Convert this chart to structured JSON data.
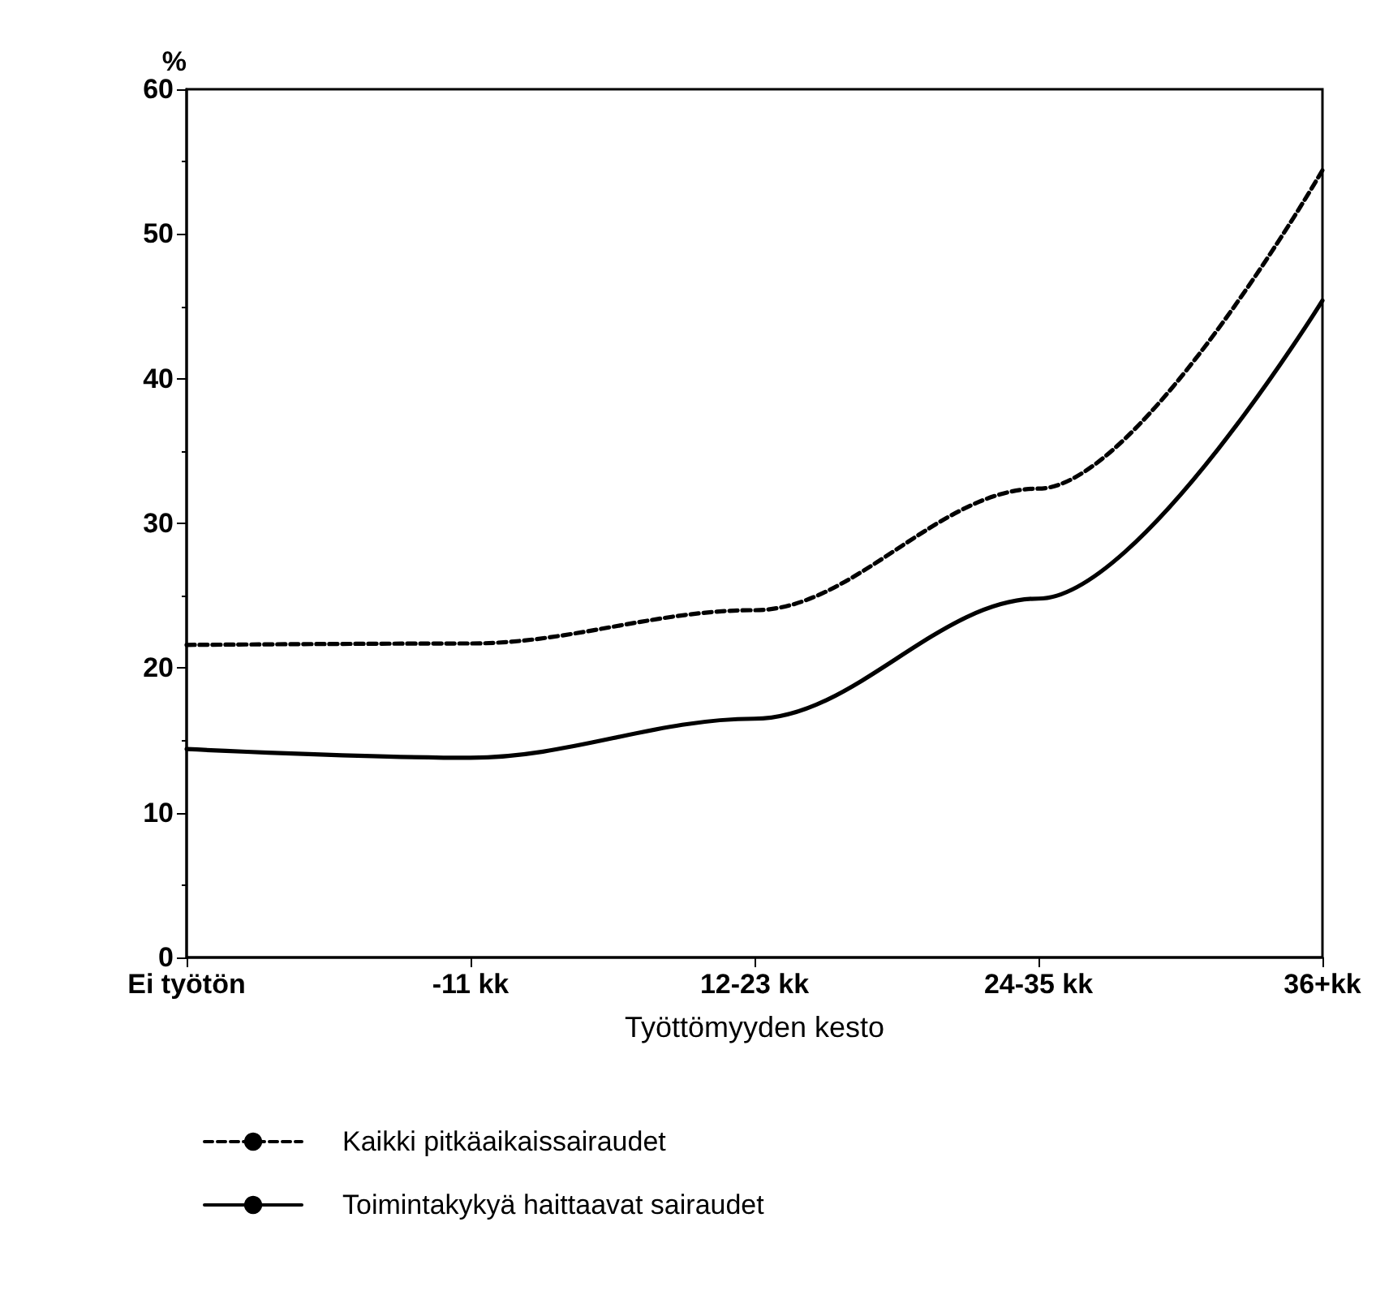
{
  "chart_data": {
    "type": "line",
    "ylabel": "%",
    "xlabel": "Työttömyyden kesto",
    "categories": [
      "Ei työtön",
      "-11 kk",
      "12-23 kk",
      "24-35 kk",
      "36+kk"
    ],
    "series": [
      {
        "name": "Kaikki pitkäaikaissairaudet",
        "color": "#000000",
        "line_style": "dashed",
        "values": [
          21.6,
          21.7,
          24.0,
          32.4,
          54.4
        ]
      },
      {
        "name": "Toimintakykyä haittaavat sairaudet",
        "color": "#000000",
        "line_style": "solid",
        "values": [
          14.4,
          13.8,
          16.5,
          24.8,
          45.4
        ]
      }
    ],
    "ylim": [
      0,
      60
    ],
    "yticks": [
      0,
      10,
      20,
      30,
      40,
      50,
      60
    ],
    "grid": false,
    "legend": "bottom",
    "marker": "none"
  }
}
